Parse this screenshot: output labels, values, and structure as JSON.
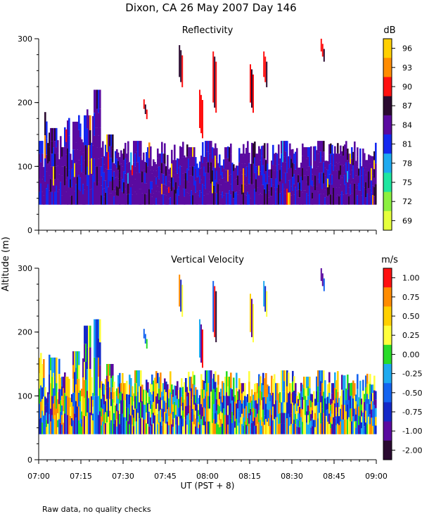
{
  "header": {
    "title": "Dixon, CA 26 May 2007  Day 146"
  },
  "footer": {
    "note": "Raw data, no quality checks"
  },
  "chart_data": [
    {
      "type": "heatmap",
      "title": "Reflectivity",
      "ylabel": "Altitude (m)",
      "ylim": [
        0,
        300
      ],
      "yticks": [
        0,
        100,
        200,
        300
      ],
      "colorbar": {
        "unit": "dB",
        "labels": [
          "96",
          "93",
          "90",
          "87",
          "84",
          "81",
          "78",
          "75",
          "72",
          "69"
        ],
        "colors": [
          "#ffd000",
          "#ff8c00",
          "#ff1010",
          "#2a0a30",
          "#5a0aa0",
          "#1428f0",
          "#1eaaf0",
          "#1ee6a0",
          "#8cf040",
          "#e6ff3c"
        ]
      },
      "events": [
        {
          "t": 7.0,
          "a0": 40,
          "a1": 140
        },
        {
          "t": 7.08,
          "a0": 40,
          "a1": 160
        },
        {
          "t": 7.15,
          "a0": 40,
          "a1": 130
        },
        {
          "t": 7.22,
          "a0": 40,
          "a1": 170
        },
        {
          "t": 7.28,
          "a0": 40,
          "a1": 180
        },
        {
          "t": 7.34,
          "a0": 40,
          "a1": 220
        },
        {
          "t": 7.42,
          "a0": 40,
          "a1": 150
        },
        {
          "t": 7.5,
          "a0": 40,
          "a1": 120
        },
        {
          "t": 7.58,
          "a0": 40,
          "a1": 140
        },
        {
          "t": 7.62,
          "a0": 190,
          "a1": 205
        },
        {
          "t": 7.72,
          "a0": 40,
          "a1": 120
        },
        {
          "t": 7.8,
          "a0": 40,
          "a1": 110
        },
        {
          "t": 7.83,
          "a0": 240,
          "a1": 290
        },
        {
          "t": 7.9,
          "a0": 40,
          "a1": 130
        },
        {
          "t": 7.95,
          "a0": 160,
          "a1": 220
        },
        {
          "t": 8.0,
          "a0": 40,
          "a1": 140
        },
        {
          "t": 8.03,
          "a0": 200,
          "a1": 280
        },
        {
          "t": 8.12,
          "a0": 40,
          "a1": 130
        },
        {
          "t": 8.2,
          "a0": 40,
          "a1": 120
        },
        {
          "t": 8.25,
          "a0": 200,
          "a1": 260
        },
        {
          "t": 8.3,
          "a0": 40,
          "a1": 120
        },
        {
          "t": 8.33,
          "a0": 240,
          "a1": 280
        },
        {
          "t": 8.4,
          "a0": 40,
          "a1": 120
        },
        {
          "t": 8.45,
          "a0": 40,
          "a1": 140
        },
        {
          "t": 8.5,
          "a0": 40,
          "a1": 120
        },
        {
          "t": 8.58,
          "a0": 40,
          "a1": 130
        },
        {
          "t": 8.67,
          "a0": 40,
          "a1": 140
        },
        {
          "t": 8.67,
          "a0": 280,
          "a1": 300
        },
        {
          "t": 8.75,
          "a0": 40,
          "a1": 120
        },
        {
          "t": 8.85,
          "a0": 40,
          "a1": 120
        },
        {
          "t": 8.95,
          "a0": 40,
          "a1": 110
        }
      ]
    },
    {
      "type": "heatmap",
      "title": "Vertical Velocity",
      "ylabel": "Altitude (m)",
      "ylim": [
        0,
        300
      ],
      "yticks": [
        0,
        100,
        200,
        300
      ],
      "colorbar": {
        "unit": "m/s",
        "labels": [
          "1.00",
          "0.75",
          "0.50",
          "0.25",
          "0.00",
          "-0.25",
          "-0.50",
          "-0.75",
          "-1.00",
          "-2.00"
        ],
        "colors": [
          "#ff1010",
          "#ff8c00",
          "#ffd000",
          "#ffff3c",
          "#28dc28",
          "#1eaaf0",
          "#1464f0",
          "#1428c8",
          "#5a0aa0",
          "#2a0a30"
        ]
      },
      "events": [
        {
          "t": 7.0,
          "a0": 40,
          "a1": 150
        },
        {
          "t": 7.08,
          "a0": 40,
          "a1": 160
        },
        {
          "t": 7.15,
          "a0": 40,
          "a1": 130
        },
        {
          "t": 7.22,
          "a0": 40,
          "a1": 170
        },
        {
          "t": 7.28,
          "a0": 40,
          "a1": 210
        },
        {
          "t": 7.34,
          "a0": 40,
          "a1": 220
        },
        {
          "t": 7.42,
          "a0": 40,
          "a1": 150
        },
        {
          "t": 7.5,
          "a0": 40,
          "a1": 120
        },
        {
          "t": 7.58,
          "a0": 40,
          "a1": 140
        },
        {
          "t": 7.62,
          "a0": 190,
          "a1": 205
        },
        {
          "t": 7.72,
          "a0": 40,
          "a1": 120
        },
        {
          "t": 7.8,
          "a0": 40,
          "a1": 110
        },
        {
          "t": 7.83,
          "a0": 240,
          "a1": 290
        },
        {
          "t": 7.9,
          "a0": 40,
          "a1": 130
        },
        {
          "t": 7.95,
          "a0": 160,
          "a1": 220
        },
        {
          "t": 8.0,
          "a0": 40,
          "a1": 140
        },
        {
          "t": 8.03,
          "a0": 200,
          "a1": 280
        },
        {
          "t": 8.12,
          "a0": 40,
          "a1": 130
        },
        {
          "t": 8.2,
          "a0": 40,
          "a1": 120
        },
        {
          "t": 8.25,
          "a0": 200,
          "a1": 260
        },
        {
          "t": 8.3,
          "a0": 40,
          "a1": 120
        },
        {
          "t": 8.33,
          "a0": 240,
          "a1": 280
        },
        {
          "t": 8.4,
          "a0": 40,
          "a1": 120
        },
        {
          "t": 8.45,
          "a0": 40,
          "a1": 140
        },
        {
          "t": 8.5,
          "a0": 40,
          "a1": 120
        },
        {
          "t": 8.58,
          "a0": 40,
          "a1": 130
        },
        {
          "t": 8.67,
          "a0": 40,
          "a1": 140
        },
        {
          "t": 8.67,
          "a0": 280,
          "a1": 300
        },
        {
          "t": 8.75,
          "a0": 40,
          "a1": 120
        },
        {
          "t": 8.85,
          "a0": 40,
          "a1": 120
        },
        {
          "t": 8.95,
          "a0": 40,
          "a1": 110
        }
      ]
    }
  ],
  "xaxis": {
    "label": "UT  (PST + 8)",
    "ticks": [
      "07:00",
      "07:15",
      "07:30",
      "07:45",
      "08:00",
      "08:15",
      "08:30",
      "08:45",
      "09:00"
    ],
    "xlim_hours": [
      7.0,
      9.0
    ]
  }
}
